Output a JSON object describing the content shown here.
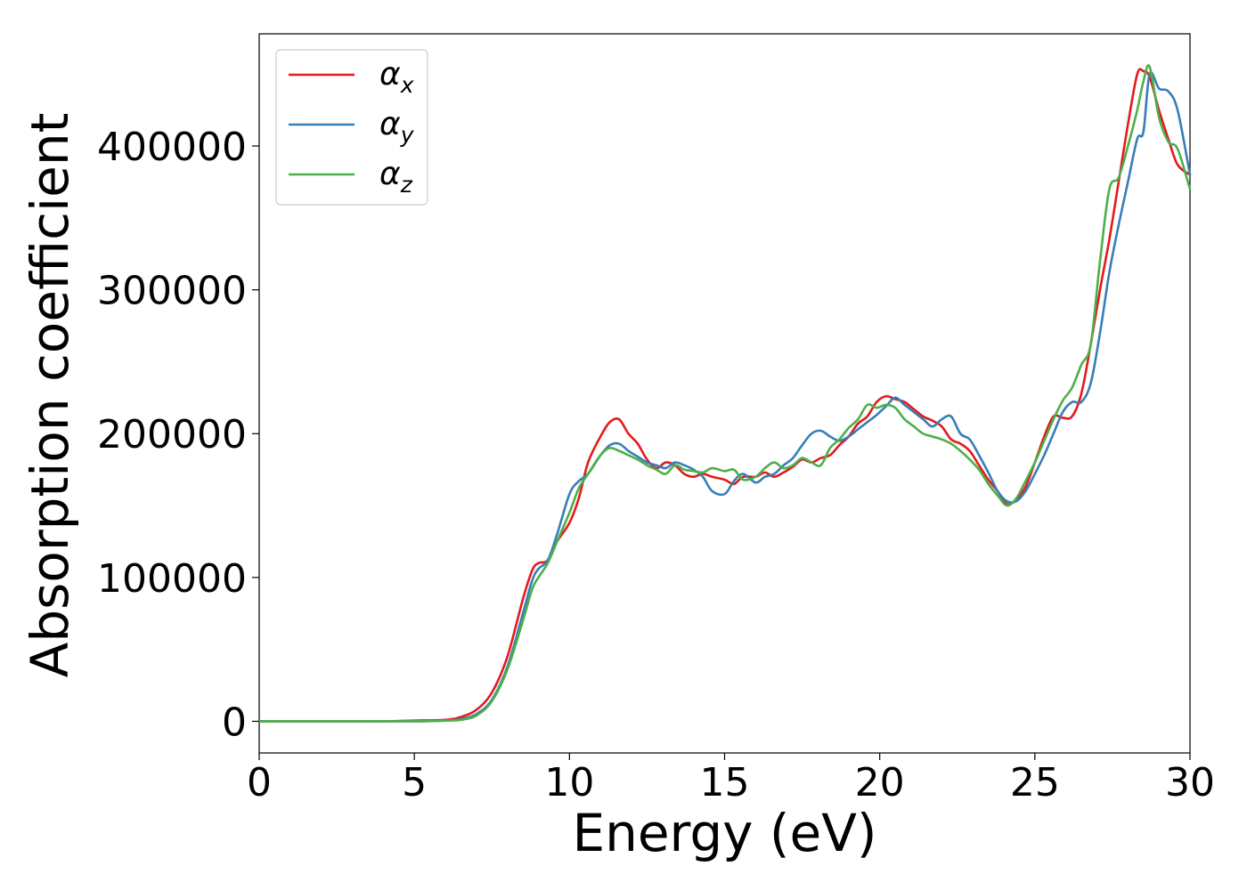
{
  "chart_data": {
    "type": "line",
    "title": "",
    "xlabel": "Energy (eV)",
    "ylabel": "Absorption coefficient",
    "xlim": [
      0,
      30
    ],
    "ylim": [
      -22000,
      478000
    ],
    "xticks": [
      0,
      5,
      10,
      15,
      20,
      25,
      30
    ],
    "xtick_labels": [
      "0",
      "5",
      "10",
      "15",
      "20",
      "25",
      "30"
    ],
    "yticks": [
      0,
      100000,
      200000,
      300000,
      400000
    ],
    "ytick_labels": [
      "0",
      "100000",
      "200000",
      "300000",
      "400000"
    ],
    "grid": false,
    "legend_position": "top-left",
    "series": [
      {
        "name": "α_x",
        "legend_symbol": "α",
        "legend_sub": "x",
        "color": "#e41a1c",
        "x": [
          0,
          1,
          2,
          3,
          4,
          5,
          6,
          6.5,
          7,
          7.5,
          8,
          8.5,
          8.8,
          9.0,
          9.3,
          9.6,
          10,
          10.3,
          10.6,
          11,
          11.3,
          11.6,
          11.9,
          12.2,
          12.5,
          12.8,
          13.1,
          13.4,
          13.7,
          14,
          14.3,
          14.6,
          15,
          15.3,
          15.6,
          16,
          16.3,
          16.6,
          16.9,
          17.2,
          17.5,
          17.8,
          18.1,
          18.4,
          18.7,
          19,
          19.3,
          19.6,
          19.9,
          20.2,
          20.5,
          20.8,
          21.1,
          21.4,
          21.7,
          22,
          22.3,
          22.6,
          22.9,
          23.2,
          23.5,
          23.8,
          24.1,
          24.4,
          24.7,
          25,
          25.3,
          25.6,
          25.9,
          26.2,
          26.5,
          26.8,
          27.1,
          27.4,
          27.7,
          28,
          28.3,
          28.5,
          28.7,
          29,
          29.3,
          29.6,
          30
        ],
        "y": [
          0,
          0,
          0,
          0,
          0,
          500,
          1000,
          3000,
          8000,
          20000,
          45000,
          85000,
          105000,
          110000,
          112000,
          125000,
          138000,
          155000,
          180000,
          198000,
          208000,
          210000,
          200000,
          193000,
          182000,
          176000,
          180000,
          178000,
          172000,
          170000,
          172000,
          170000,
          168000,
          165000,
          170000,
          170000,
          173000,
          170000,
          173000,
          177000,
          182000,
          180000,
          183000,
          185000,
          192000,
          198000,
          207000,
          212000,
          222000,
          226000,
          224000,
          222000,
          217000,
          212000,
          209000,
          205000,
          196000,
          193000,
          188000,
          178000,
          168000,
          160000,
          151000,
          154000,
          163000,
          180000,
          198000,
          212000,
          211000,
          212000,
          228000,
          262000,
          300000,
          335000,
          375000,
          415000,
          450000,
          452000,
          448000,
          425000,
          405000,
          387000,
          380000
        ]
      },
      {
        "name": "α_y",
        "legend_symbol": "α",
        "legend_sub": "y",
        "color": "#377eb8",
        "x": [
          0,
          1,
          2,
          3,
          4,
          5,
          6,
          6.5,
          7,
          7.5,
          8,
          8.5,
          8.8,
          9.0,
          9.3,
          9.6,
          10,
          10.3,
          10.6,
          11,
          11.3,
          11.6,
          11.9,
          12.2,
          12.5,
          12.8,
          13.1,
          13.4,
          13.7,
          14,
          14.3,
          14.6,
          15,
          15.3,
          15.6,
          16,
          16.3,
          16.6,
          16.9,
          17.2,
          17.5,
          17.8,
          18.1,
          18.4,
          18.7,
          19,
          19.3,
          19.6,
          19.9,
          20.2,
          20.5,
          20.8,
          21.1,
          21.4,
          21.7,
          22,
          22.3,
          22.6,
          22.9,
          23.2,
          23.5,
          23.8,
          24.1,
          24.4,
          24.7,
          25,
          25.3,
          25.6,
          25.9,
          26.2,
          26.5,
          26.8,
          27.1,
          27.4,
          27.7,
          28,
          28.3,
          28.5,
          28.7,
          29,
          29.3,
          29.6,
          30
        ],
        "y": [
          0,
          0,
          0,
          0,
          0,
          0,
          500,
          1500,
          5000,
          15000,
          38000,
          75000,
          98000,
          106000,
          112000,
          130000,
          158000,
          167000,
          172000,
          185000,
          192000,
          193000,
          188000,
          184000,
          180000,
          178000,
          176000,
          180000,
          178000,
          175000,
          170000,
          160000,
          158000,
          167000,
          172000,
          166000,
          170000,
          172000,
          178000,
          183000,
          192000,
          200000,
          202000,
          198000,
          195000,
          198000,
          203000,
          208000,
          213000,
          219000,
          225000,
          220000,
          215000,
          210000,
          205000,
          210000,
          212000,
          200000,
          196000,
          185000,
          173000,
          160000,
          153000,
          153000,
          160000,
          172000,
          185000,
          200000,
          215000,
          222000,
          222000,
          235000,
          270000,
          312000,
          345000,
          375000,
          405000,
          410000,
          450000,
          440000,
          438000,
          425000,
          380000
        ]
      },
      {
        "name": "α_z",
        "legend_symbol": "α",
        "legend_sub": "z",
        "color": "#4daf4a",
        "x": [
          0,
          1,
          2,
          3,
          4,
          5,
          6,
          6.5,
          7,
          7.5,
          8,
          8.5,
          8.8,
          9.0,
          9.3,
          9.6,
          10,
          10.3,
          10.6,
          11,
          11.3,
          11.6,
          11.9,
          12.2,
          12.5,
          12.8,
          13.1,
          13.4,
          13.7,
          14,
          14.3,
          14.6,
          15,
          15.3,
          15.6,
          16,
          16.3,
          16.6,
          16.9,
          17.2,
          17.5,
          17.8,
          18.1,
          18.4,
          18.7,
          19,
          19.3,
          19.6,
          19.9,
          20.2,
          20.5,
          20.8,
          21.1,
          21.4,
          21.7,
          22,
          22.3,
          22.6,
          22.9,
          23.2,
          23.5,
          23.8,
          24.1,
          24.4,
          24.7,
          25,
          25.3,
          25.6,
          25.9,
          26.2,
          26.5,
          26.8,
          27.1,
          27.4,
          27.7,
          28,
          28.3,
          28.5,
          28.7,
          29,
          29.3,
          29.6,
          30
        ],
        "y": [
          0,
          0,
          0,
          0,
          0,
          0,
          500,
          1000,
          4000,
          14000,
          36000,
          70000,
          92000,
          100000,
          110000,
          125000,
          145000,
          162000,
          172000,
          185000,
          190000,
          188000,
          185000,
          182000,
          178000,
          175000,
          172000,
          178000,
          175000,
          174000,
          173000,
          176000,
          174000,
          175000,
          168000,
          170000,
          176000,
          180000,
          176000,
          178000,
          183000,
          180000,
          178000,
          190000,
          196000,
          204000,
          210000,
          220000,
          218000,
          220000,
          218000,
          210000,
          205000,
          200000,
          198000,
          196000,
          193000,
          188000,
          182000,
          175000,
          165000,
          157000,
          150000,
          155000,
          167000,
          180000,
          195000,
          210000,
          223000,
          232000,
          248000,
          262000,
          320000,
          370000,
          378000,
          400000,
          425000,
          445000,
          455000,
          420000,
          403000,
          398000,
          370000
        ]
      }
    ]
  }
}
